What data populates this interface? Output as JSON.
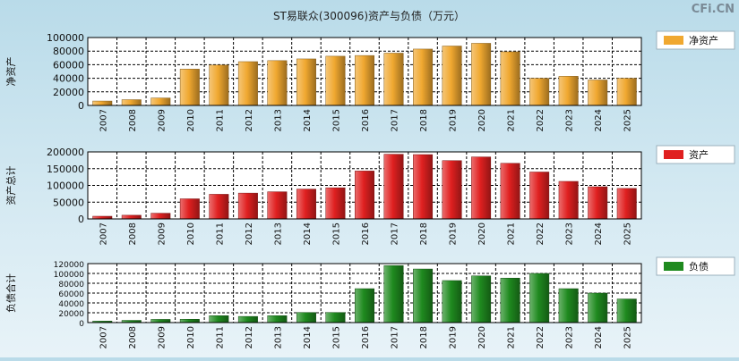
{
  "title": "ST易联众(300096)资产与负债（万元）",
  "watermark": "CFi.CN",
  "chart_data": [
    {
      "type": "bar",
      "ylabel": "净资产",
      "legend": "净资产",
      "color": "#f0a830",
      "ylim": [
        0,
        100000
      ],
      "yticks": [
        "0",
        "20000",
        "40000",
        "60000",
        "80000",
        "100000"
      ],
      "categories": [
        "2007",
        "2008",
        "2009",
        "2010",
        "2011",
        "2012",
        "2013",
        "2014",
        "2015",
        "2016",
        "2017",
        "2018",
        "2019",
        "2020",
        "2021",
        "2022",
        "2023",
        "2024",
        "2025"
      ],
      "values": [
        6500,
        8500,
        11000,
        53500,
        59500,
        64500,
        66000,
        68500,
        72500,
        73500,
        77000,
        83000,
        87500,
        91500,
        79000,
        40000,
        43000,
        37500,
        40000
      ]
    },
    {
      "type": "bar",
      "ylabel": "资产总计",
      "legend": "资产",
      "color": "#e02020",
      "ylim": [
        0,
        200000
      ],
      "yticks": [
        "0",
        "50000",
        "100000",
        "150000",
        "200000"
      ],
      "categories": [
        "2007",
        "2008",
        "2009",
        "2010",
        "2011",
        "2012",
        "2013",
        "2014",
        "2015",
        "2016",
        "2017",
        "2018",
        "2019",
        "2020",
        "2021",
        "2022",
        "2023",
        "2024",
        "2025"
      ],
      "values": [
        8000,
        11000,
        17000,
        60000,
        73500,
        77000,
        81000,
        89000,
        93000,
        143000,
        193000,
        192000,
        174000,
        185000,
        166000,
        140000,
        112000,
        96000,
        91000
      ]
    },
    {
      "type": "bar",
      "ylabel": "负债合计",
      "legend": "负债",
      "color": "#1f8a1f",
      "ylim": [
        0,
        120000
      ],
      "yticks": [
        "0",
        "20000",
        "40000",
        "60000",
        "80000",
        "100000",
        "120000"
      ],
      "categories": [
        "2007",
        "2008",
        "2009",
        "2010",
        "2011",
        "2012",
        "2013",
        "2014",
        "2015",
        "2016",
        "2017",
        "2018",
        "2019",
        "2020",
        "2021",
        "2022",
        "2023",
        "2024",
        "2025"
      ],
      "values": [
        3000,
        4500,
        6500,
        6800,
        14000,
        12500,
        14000,
        20500,
        20500,
        69000,
        116000,
        109000,
        85500,
        95000,
        90500,
        100000,
        69000,
        60000,
        48000
      ]
    }
  ]
}
